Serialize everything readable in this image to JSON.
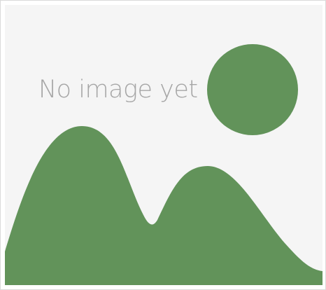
{
  "placeholder": {
    "caption": "No image yet",
    "illustration_icon": "image-placeholder-icon",
    "colors": {
      "background": "#f5f5f5",
      "border": "#d9d9d9",
      "shape": "#62935a",
      "text": "#a6a6a6"
    }
  }
}
